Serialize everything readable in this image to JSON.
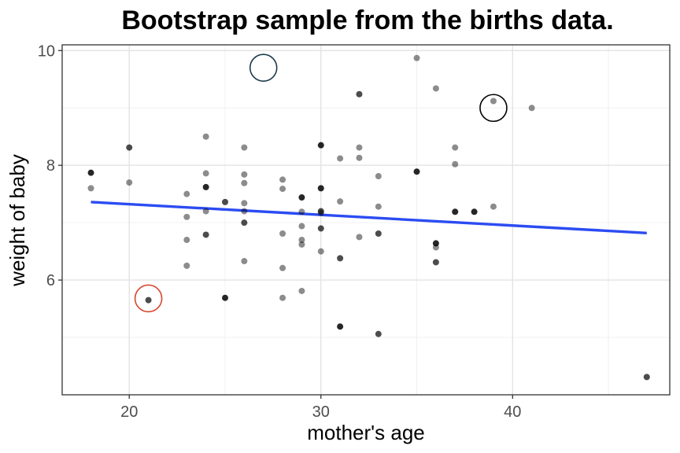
{
  "chart_data": {
    "type": "scatter",
    "title": "Bootstrap sample from the births data.",
    "xlabel": "mother's age",
    "ylabel": "weight of baby",
    "xlim": [
      16.5,
      48.2
    ],
    "ylim": [
      4.0,
      10.1
    ],
    "xticks": [
      20,
      30,
      40
    ],
    "yticks": [
      6,
      8,
      10
    ],
    "x_minor_ticks": [
      25,
      35,
      45
    ],
    "y_minor_ticks": [
      5,
      7,
      9
    ],
    "grid": true,
    "point_color": "#000000",
    "regression_line": {
      "color": "#2b4cf2",
      "x": [
        18,
        47
      ],
      "y": [
        7.36,
        6.82
      ]
    },
    "highlights": [
      {
        "x": 27,
        "y": 9.7,
        "color": "#1d3a4a"
      },
      {
        "x": 39,
        "y": 9.0,
        "color": "#000000"
      },
      {
        "x": 21,
        "y": 5.68,
        "color": "#d9452e"
      }
    ],
    "points": [
      {
        "x": 18,
        "y": 7.87,
        "alpha": 0.85
      },
      {
        "x": 18,
        "y": 7.6,
        "alpha": 0.45
      },
      {
        "x": 20,
        "y": 8.31,
        "alpha": 0.7
      },
      {
        "x": 20,
        "y": 7.7,
        "alpha": 0.45
      },
      {
        "x": 21,
        "y": 5.65,
        "alpha": 0.7
      },
      {
        "x": 23,
        "y": 7.5,
        "alpha": 0.45
      },
      {
        "x": 23,
        "y": 7.1,
        "alpha": 0.45
      },
      {
        "x": 23,
        "y": 6.7,
        "alpha": 0.45
      },
      {
        "x": 23,
        "y": 6.25,
        "alpha": 0.45
      },
      {
        "x": 24,
        "y": 8.5,
        "alpha": 0.45
      },
      {
        "x": 24,
        "y": 7.86,
        "alpha": 0.45
      },
      {
        "x": 24,
        "y": 7.62,
        "alpha": 0.85
      },
      {
        "x": 24,
        "y": 7.2,
        "alpha": 0.45
      },
      {
        "x": 24,
        "y": 6.79,
        "alpha": 0.7
      },
      {
        "x": 25,
        "y": 7.36,
        "alpha": 0.7
      },
      {
        "x": 25,
        "y": 5.69,
        "alpha": 0.85
      },
      {
        "x": 26,
        "y": 8.31,
        "alpha": 0.45
      },
      {
        "x": 26,
        "y": 7.84,
        "alpha": 0.45
      },
      {
        "x": 26,
        "y": 7.69,
        "alpha": 0.45
      },
      {
        "x": 26,
        "y": 7.34,
        "alpha": 0.45
      },
      {
        "x": 26,
        "y": 7.2,
        "alpha": 0.45
      },
      {
        "x": 26,
        "y": 7.0,
        "alpha": 0.7
      },
      {
        "x": 26,
        "y": 6.33,
        "alpha": 0.45
      },
      {
        "x": 28,
        "y": 7.75,
        "alpha": 0.45
      },
      {
        "x": 28,
        "y": 7.59,
        "alpha": 0.45
      },
      {
        "x": 28,
        "y": 6.81,
        "alpha": 0.45
      },
      {
        "x": 28,
        "y": 6.21,
        "alpha": 0.45
      },
      {
        "x": 28,
        "y": 5.69,
        "alpha": 0.45
      },
      {
        "x": 29,
        "y": 7.44,
        "alpha": 0.85
      },
      {
        "x": 29,
        "y": 7.19,
        "alpha": 0.45
      },
      {
        "x": 29,
        "y": 6.94,
        "alpha": 0.45
      },
      {
        "x": 29,
        "y": 6.7,
        "alpha": 0.45
      },
      {
        "x": 29,
        "y": 6.62,
        "alpha": 0.45
      },
      {
        "x": 29,
        "y": 5.81,
        "alpha": 0.45
      },
      {
        "x": 30,
        "y": 8.35,
        "alpha": 0.85
      },
      {
        "x": 30,
        "y": 7.6,
        "alpha": 0.85
      },
      {
        "x": 30,
        "y": 7.2,
        "alpha": 0.7
      },
      {
        "x": 30,
        "y": 7.17,
        "alpha": 0.45
      },
      {
        "x": 30,
        "y": 6.9,
        "alpha": 0.7
      },
      {
        "x": 30,
        "y": 6.5,
        "alpha": 0.45
      },
      {
        "x": 31,
        "y": 8.12,
        "alpha": 0.45
      },
      {
        "x": 31,
        "y": 7.37,
        "alpha": 0.45
      },
      {
        "x": 31,
        "y": 6.38,
        "alpha": 0.7
      },
      {
        "x": 31,
        "y": 5.19,
        "alpha": 0.85
      },
      {
        "x": 32,
        "y": 9.24,
        "alpha": 0.7
      },
      {
        "x": 32,
        "y": 8.31,
        "alpha": 0.45
      },
      {
        "x": 32,
        "y": 8.13,
        "alpha": 0.45
      },
      {
        "x": 32,
        "y": 6.75,
        "alpha": 0.45
      },
      {
        "x": 33,
        "y": 7.81,
        "alpha": 0.45
      },
      {
        "x": 33,
        "y": 7.28,
        "alpha": 0.45
      },
      {
        "x": 33,
        "y": 6.81,
        "alpha": 0.7
      },
      {
        "x": 33,
        "y": 5.06,
        "alpha": 0.7
      },
      {
        "x": 35,
        "y": 9.87,
        "alpha": 0.45
      },
      {
        "x": 35,
        "y": 7.89,
        "alpha": 0.85
      },
      {
        "x": 36,
        "y": 9.34,
        "alpha": 0.45
      },
      {
        "x": 36,
        "y": 6.64,
        "alpha": 0.85
      },
      {
        "x": 36,
        "y": 6.57,
        "alpha": 0.45
      },
      {
        "x": 36,
        "y": 6.31,
        "alpha": 0.7
      },
      {
        "x": 37,
        "y": 8.31,
        "alpha": 0.45
      },
      {
        "x": 37,
        "y": 8.02,
        "alpha": 0.45
      },
      {
        "x": 37,
        "y": 7.19,
        "alpha": 0.85
      },
      {
        "x": 38,
        "y": 7.19,
        "alpha": 0.85
      },
      {
        "x": 39,
        "y": 9.12,
        "alpha": 0.45
      },
      {
        "x": 39,
        "y": 7.28,
        "alpha": 0.45
      },
      {
        "x": 41,
        "y": 9.0,
        "alpha": 0.45
      },
      {
        "x": 47,
        "y": 4.31,
        "alpha": 0.7
      }
    ]
  }
}
